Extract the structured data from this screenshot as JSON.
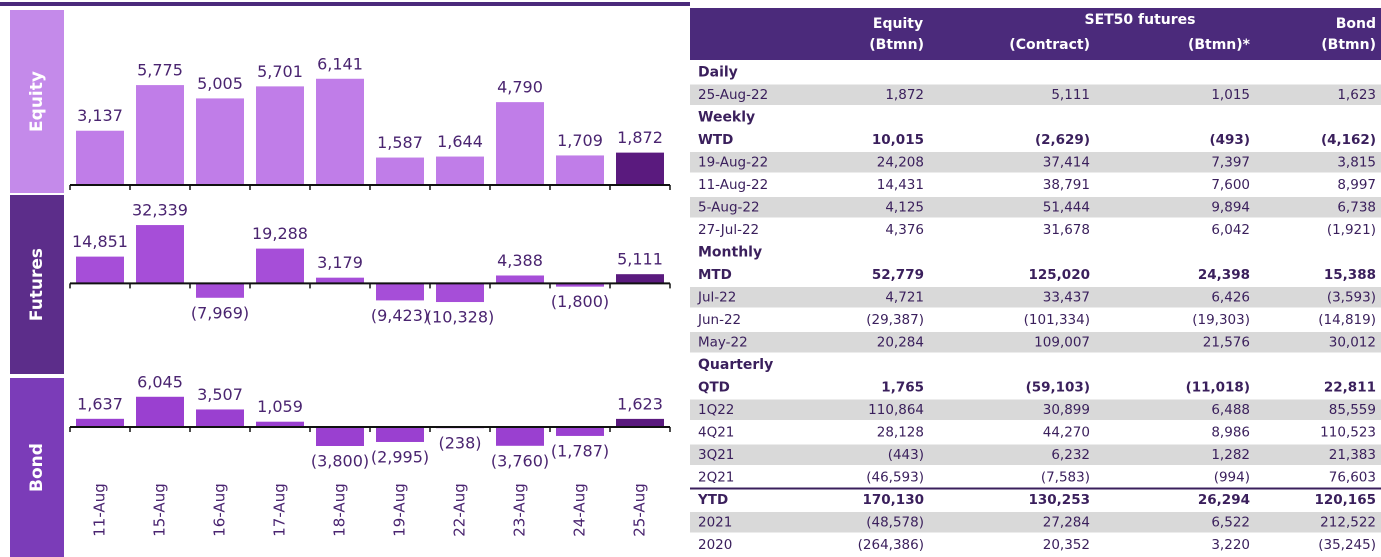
{
  "chart_data": {
    "type": "bar",
    "categories": [
      "11-Aug",
      "15-Aug",
      "16-Aug",
      "17-Aug",
      "18-Aug",
      "19-Aug",
      "22-Aug",
      "23-Aug",
      "24-Aug",
      "25-Aug"
    ],
    "panels": [
      {
        "name": "Equity",
        "box_color": "#c48aea",
        "values": [
          3137,
          5775,
          5005,
          5701,
          6141,
          1587,
          1644,
          4790,
          1709,
          1872
        ],
        "value_labels": [
          "3,137",
          "5,775",
          "5,005",
          "5,701",
          "6,141",
          "1,587",
          "1,644",
          "4,790",
          "1,709",
          "1,872"
        ],
        "colors": [
          "#c07de8",
          "#c07de8",
          "#c07de8",
          "#c07de8",
          "#c07de8",
          "#c07de8",
          "#c07de8",
          "#c07de8",
          "#c07de8",
          "#5a1a7e"
        ],
        "ylim": [
          0,
          10000
        ]
      },
      {
        "name": "Futures",
        "box_color": "#5c2d8a",
        "values": [
          14851,
          32339,
          -7969,
          19288,
          3179,
          -9423,
          -10328,
          4388,
          -1800,
          5111
        ],
        "value_labels": [
          "14,851",
          "32,339",
          "(7,969)",
          "19,288",
          "3,179",
          "(9,423)",
          "(10,328)",
          "4,388",
          "(1,800)",
          "5,111"
        ],
        "colors": [
          "#a64ed8",
          "#a64ed8",
          "#a64ed8",
          "#a64ed8",
          "#a64ed8",
          "#a64ed8",
          "#a64ed8",
          "#a64ed8",
          "#a64ed8",
          "#5a1a7e"
        ],
        "ylim": [
          -48000,
          49000
        ]
      },
      {
        "name": "Bond",
        "box_color": "#7b3cb8",
        "values": [
          1637,
          6045,
          3507,
          1059,
          -3800,
          -2995,
          -238,
          -3760,
          -1787,
          1623
        ],
        "value_labels": [
          "1,637",
          "6,045",
          "3,507",
          "1,059",
          "(3,800)",
          "(2,995)",
          "(238)",
          "(3,760)",
          "(1,787)",
          "1,623"
        ],
        "colors": [
          "#9a40d0",
          "#9a40d0",
          "#9a40d0",
          "#9a40d0",
          "#9a40d0",
          "#9a40d0",
          "#9a40d0",
          "#9a40d0",
          "#9a40d0",
          "#5a1a7e"
        ],
        "ylim": [
          -8000,
          10000
        ]
      }
    ]
  },
  "table": {
    "header": {
      "equity": "Equity",
      "futures": "SET50 futures",
      "bond": "Bond",
      "units": [
        "(Btmn)",
        "(Contract)",
        "(Btmn)*",
        "(Btmn)"
      ]
    },
    "sections": [
      {
        "title": "Daily",
        "rows": [
          {
            "cells": [
              "25-Aug-22",
              "1,872",
              "5,111",
              "1,015",
              "1,623"
            ],
            "bold": false
          }
        ]
      },
      {
        "title": "Weekly",
        "rows": [
          {
            "cells": [
              "WTD",
              "10,015",
              "(2,629)",
              "(493)",
              "(4,162)"
            ],
            "bold": true
          },
          {
            "cells": [
              "19-Aug-22",
              "24,208",
              "37,414",
              "7,397",
              "3,815"
            ],
            "bold": false
          },
          {
            "cells": [
              "11-Aug-22",
              "14,431",
              "38,791",
              "7,600",
              "8,997"
            ],
            "bold": false
          },
          {
            "cells": [
              "5-Aug-22",
              "4,125",
              "51,444",
              "9,894",
              "6,738"
            ],
            "bold": false
          },
          {
            "cells": [
              "27-Jul-22",
              "4,376",
              "31,678",
              "6,042",
              "(1,921)"
            ],
            "bold": false
          }
        ]
      },
      {
        "title": "Monthly",
        "rows": [
          {
            "cells": [
              "MTD",
              "52,779",
              "125,020",
              "24,398",
              "15,388"
            ],
            "bold": true
          },
          {
            "cells": [
              "Jul-22",
              "4,721",
              "33,437",
              "6,426",
              "(3,593)"
            ],
            "bold": false
          },
          {
            "cells": [
              "Jun-22",
              "(29,387)",
              "(101,334)",
              "(19,303)",
              "(14,819)"
            ],
            "bold": false
          },
          {
            "cells": [
              "May-22",
              "20,284",
              "109,007",
              "21,576",
              "30,012"
            ],
            "bold": false
          }
        ]
      },
      {
        "title": "Quarterly",
        "rows": [
          {
            "cells": [
              "QTD",
              "1,765",
              "(59,103)",
              "(11,018)",
              "22,811"
            ],
            "bold": true
          },
          {
            "cells": [
              "1Q22",
              "110,864",
              "30,899",
              "6,488",
              "85,559"
            ],
            "bold": false
          },
          {
            "cells": [
              "4Q21",
              "28,128",
              "44,270",
              "8,986",
              "110,523"
            ],
            "bold": false
          },
          {
            "cells": [
              "3Q21",
              "(443)",
              "6,232",
              "1,282",
              "21,383"
            ],
            "bold": false
          },
          {
            "cells": [
              "2Q21",
              "(46,593)",
              "(7,583)",
              "(994)",
              "76,603"
            ],
            "bold": false
          },
          {
            "cells": [
              "YTD",
              "170,130",
              "130,253",
              "26,294",
              "120,165"
            ],
            "bold": true
          },
          {
            "cells": [
              "2021",
              "(48,578)",
              "27,284",
              "6,522",
              "212,522"
            ],
            "bold": false
          },
          {
            "cells": [
              "2020",
              "(264,386)",
              "20,352",
              "3,220",
              "(35,245)"
            ],
            "bold": false
          }
        ]
      }
    ]
  }
}
